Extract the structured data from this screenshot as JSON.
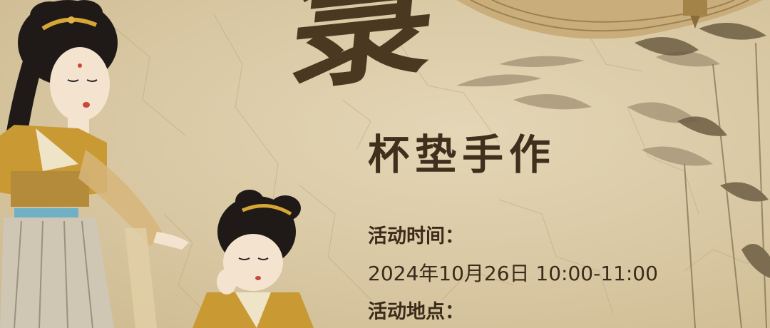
{
  "poster": {
    "brush_char": "㯟",
    "subtitle": "杯垫手作",
    "time_label": "活动时间：",
    "time_value": "2024年10月26日 10:00-11:00",
    "location_label": "活动地点：",
    "colors": {
      "paper": "#dacaa6",
      "ink": "#3f2f1d",
      "robe": "#c99a34",
      "sash": "#6fb0c4"
    },
    "illustrations": [
      "lady-standing",
      "girl-kneeling",
      "bamboo-leaves",
      "woven-fan"
    ]
  }
}
